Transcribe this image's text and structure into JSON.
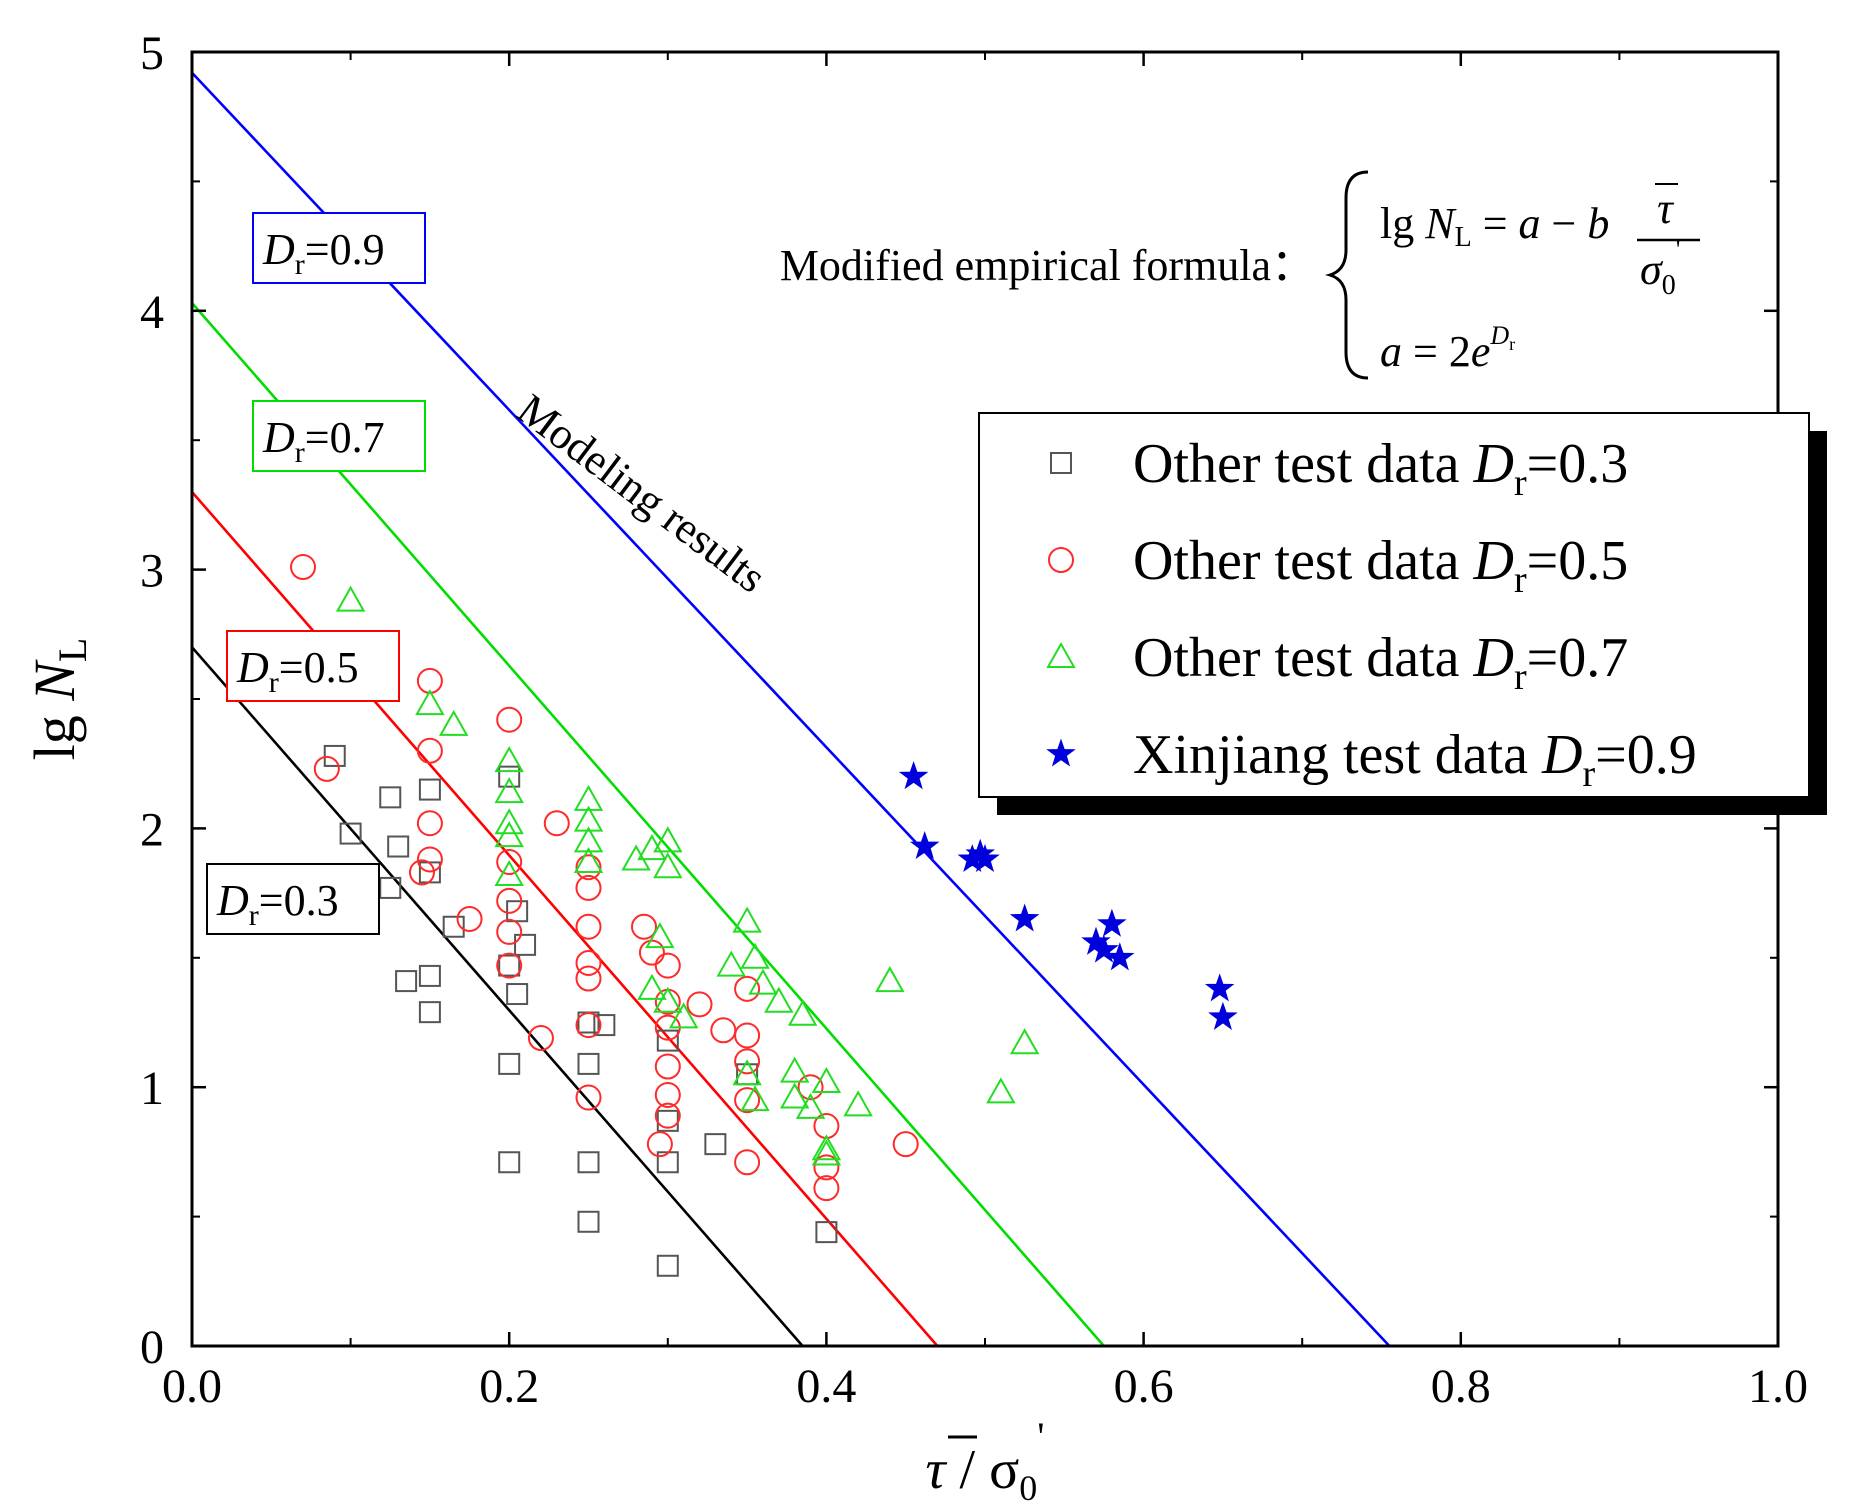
{
  "chart_data": {
    "type": "scatter",
    "title": "",
    "xlabel": {
      "main": "τ",
      "sep": " / ",
      "sigma": "σ",
      "sub": "0",
      "prime": "'"
    },
    "ylabel": {
      "main": "lg ",
      "var": "N",
      "sub": "L"
    },
    "xlim": [
      0.0,
      1.0
    ],
    "ylim": [
      0,
      5
    ],
    "xticks": [
      {
        "v": 0.0,
        "label": "0.0"
      },
      {
        "v": 0.2,
        "label": "0.2"
      },
      {
        "v": 0.4,
        "label": "0.4"
      },
      {
        "v": 0.6,
        "label": "0.6"
      },
      {
        "v": 0.8,
        "label": "0.8"
      },
      {
        "v": 1.0,
        "label": "1.0"
      }
    ],
    "yticks": [
      {
        "v": 0,
        "label": "0"
      },
      {
        "v": 1,
        "label": "1"
      },
      {
        "v": 2,
        "label": "2"
      },
      {
        "v": 3,
        "label": "3"
      },
      {
        "v": 4,
        "label": "4"
      },
      {
        "v": 5,
        "label": "5"
      }
    ],
    "grid": false,
    "lines": [
      {
        "name": "Dr=0.3",
        "color": "#000000",
        "x": [
          0.0,
          0.385
        ],
        "y": [
          2.7,
          0.0
        ]
      },
      {
        "name": "Dr=0.5",
        "color": "#ff0000",
        "x": [
          0.0,
          0.47
        ],
        "y": [
          3.3,
          0.0
        ]
      },
      {
        "name": "Dr=0.7",
        "color": "#00dd00",
        "x": [
          0.0,
          0.575
        ],
        "y": [
          4.03,
          0.0
        ]
      },
      {
        "name": "Dr=0.9",
        "color": "#0000ff",
        "x": [
          0.0,
          0.755
        ],
        "y": [
          4.92,
          0.0
        ]
      }
    ],
    "line_labels": [
      {
        "series": "Dr=0.9",
        "var": "D",
        "sub": "r",
        "value": "=0.9",
        "color": "#0000ff",
        "at": [
          0.0975,
          4.43
        ]
      },
      {
        "series": "Dr=0.7",
        "var": "D",
        "sub": "r",
        "value": "=0.7",
        "color": "#00dd00",
        "at": [
          0.0965,
          3.59
        ]
      },
      {
        "series": "Dr=0.5",
        "var": "D",
        "sub": "r",
        "value": "=0.5",
        "color": "#ff0000",
        "at": [
          0.075,
          2.64
        ]
      },
      {
        "series": "Dr=0.3",
        "var": "D",
        "sub": "r",
        "value": "=0.3",
        "color": "#000000",
        "at": [
          0.075,
          1.77
        ]
      }
    ],
    "annotation": {
      "text": "Modeling results",
      "at": [
        0.34,
        3.34
      ],
      "angle": 37
    },
    "formula": {
      "label": "Modified empirical formula：",
      "line1": {
        "lhs": "lg ",
        "var": "N",
        "sub": "L",
        "eq": " = ",
        "a": "a",
        "minus": " − ",
        "b": "b",
        "num": "τ",
        "den": "σ",
        "den_sub": "0",
        "den_prime": "'"
      },
      "line2": {
        "a": "a",
        "eq": " = 2",
        "e": "e",
        "exp_var": "D",
        "exp_sub": "r"
      }
    },
    "legend": {
      "position": "upper-right",
      "entries": [
        {
          "series": "s03",
          "text": "Other test data ",
          "var": "D",
          "sub": "r",
          "value": "=0.3"
        },
        {
          "series": "s05",
          "text": "Other test data ",
          "var": "D",
          "sub": "r",
          "value": "=0.5"
        },
        {
          "series": "s07",
          "text": "Other test data ",
          "var": "D",
          "sub": "r",
          "value": "=0.7"
        },
        {
          "series": "s09",
          "text": "Xinjiang test data ",
          "var": "D",
          "sub": "r",
          "value": "=0.9"
        }
      ]
    },
    "series": [
      {
        "id": "s03",
        "name": "Other test data Dr=0.3",
        "marker": "square",
        "color": "#555555",
        "points": [
          [
            0.09,
            2.28
          ],
          [
            0.1,
            1.98
          ],
          [
            0.125,
            2.12
          ],
          [
            0.13,
            1.93
          ],
          [
            0.125,
            1.77
          ],
          [
            0.15,
            2.15
          ],
          [
            0.15,
            1.83
          ],
          [
            0.165,
            1.62
          ],
          [
            0.135,
            1.41
          ],
          [
            0.15,
            1.43
          ],
          [
            0.15,
            1.29
          ],
          [
            0.2,
            2.2
          ],
          [
            0.205,
            1.68
          ],
          [
            0.21,
            1.55
          ],
          [
            0.2,
            1.47
          ],
          [
            0.205,
            1.36
          ],
          [
            0.2,
            1.09
          ],
          [
            0.2,
            0.71
          ],
          [
            0.25,
            1.25
          ],
          [
            0.26,
            1.24
          ],
          [
            0.25,
            1.09
          ],
          [
            0.25,
            0.71
          ],
          [
            0.25,
            0.48
          ],
          [
            0.3,
            1.18
          ],
          [
            0.3,
            0.87
          ],
          [
            0.3,
            0.71
          ],
          [
            0.3,
            0.31
          ],
          [
            0.33,
            0.78
          ],
          [
            0.35,
            1.05
          ],
          [
            0.4,
            0.44
          ]
        ]
      },
      {
        "id": "s05",
        "name": "Other test data Dr=0.5",
        "marker": "circle",
        "color": "#ff2a2a",
        "points": [
          [
            0.07,
            3.01
          ],
          [
            0.085,
            2.23
          ],
          [
            0.15,
            2.57
          ],
          [
            0.15,
            2.3
          ],
          [
            0.15,
            2.02
          ],
          [
            0.15,
            1.88
          ],
          [
            0.145,
            1.83
          ],
          [
            0.175,
            1.65
          ],
          [
            0.2,
            2.42
          ],
          [
            0.2,
            1.87
          ],
          [
            0.2,
            1.72
          ],
          [
            0.2,
            1.6
          ],
          [
            0.2,
            1.47
          ],
          [
            0.22,
            1.19
          ],
          [
            0.23,
            2.02
          ],
          [
            0.25,
            1.85
          ],
          [
            0.25,
            1.77
          ],
          [
            0.25,
            1.62
          ],
          [
            0.25,
            1.48
          ],
          [
            0.25,
            1.42
          ],
          [
            0.25,
            1.24
          ],
          [
            0.25,
            0.96
          ],
          [
            0.285,
            1.62
          ],
          [
            0.29,
            1.52
          ],
          [
            0.3,
            1.47
          ],
          [
            0.3,
            1.33
          ],
          [
            0.3,
            1.23
          ],
          [
            0.3,
            1.08
          ],
          [
            0.3,
            0.97
          ],
          [
            0.3,
            0.89
          ],
          [
            0.295,
            0.78
          ],
          [
            0.32,
            1.32
          ],
          [
            0.335,
            1.22
          ],
          [
            0.35,
            1.38
          ],
          [
            0.35,
            1.2
          ],
          [
            0.35,
            1.1
          ],
          [
            0.35,
            0.95
          ],
          [
            0.35,
            0.71
          ],
          [
            0.39,
            1.0
          ],
          [
            0.4,
            0.85
          ],
          [
            0.4,
            0.69
          ],
          [
            0.4,
            0.61
          ],
          [
            0.45,
            0.78
          ]
        ]
      },
      {
        "id": "s07",
        "name": "Other test data Dr=0.7",
        "marker": "triangle",
        "color": "#22dd22",
        "points": [
          [
            0.1,
            2.88
          ],
          [
            0.15,
            2.48
          ],
          [
            0.165,
            2.4
          ],
          [
            0.2,
            2.26
          ],
          [
            0.2,
            2.14
          ],
          [
            0.2,
            2.02
          ],
          [
            0.2,
            1.97
          ],
          [
            0.2,
            1.82
          ],
          [
            0.25,
            2.11
          ],
          [
            0.25,
            2.03
          ],
          [
            0.25,
            1.95
          ],
          [
            0.25,
            1.87
          ],
          [
            0.28,
            1.88
          ],
          [
            0.29,
            1.92
          ],
          [
            0.3,
            1.95
          ],
          [
            0.3,
            1.85
          ],
          [
            0.295,
            1.58
          ],
          [
            0.3,
            1.33
          ],
          [
            0.29,
            1.38
          ],
          [
            0.31,
            1.27
          ],
          [
            0.34,
            1.47
          ],
          [
            0.35,
            1.64
          ],
          [
            0.355,
            1.5
          ],
          [
            0.36,
            1.4
          ],
          [
            0.37,
            1.33
          ],
          [
            0.385,
            1.28
          ],
          [
            0.35,
            1.05
          ],
          [
            0.355,
            0.95
          ],
          [
            0.38,
            1.06
          ],
          [
            0.38,
            0.96
          ],
          [
            0.39,
            0.92
          ],
          [
            0.4,
            1.02
          ],
          [
            0.4,
            0.76
          ],
          [
            0.4,
            0.74
          ],
          [
            0.42,
            0.93
          ],
          [
            0.44,
            1.41
          ],
          [
            0.51,
            0.98
          ],
          [
            0.525,
            1.17
          ]
        ]
      },
      {
        "id": "s09",
        "name": "Xinjiang test data Dr=0.9",
        "marker": "star",
        "color": "#0000dd",
        "points": [
          [
            0.455,
            2.2
          ],
          [
            0.462,
            1.93
          ],
          [
            0.492,
            1.88
          ],
          [
            0.497,
            1.9
          ],
          [
            0.5,
            1.88
          ],
          [
            0.525,
            1.65
          ],
          [
            0.57,
            1.56
          ],
          [
            0.575,
            1.53
          ],
          [
            0.58,
            1.63
          ],
          [
            0.585,
            1.5
          ],
          [
            0.648,
            1.38
          ],
          [
            0.65,
            1.27
          ]
        ]
      }
    ]
  }
}
